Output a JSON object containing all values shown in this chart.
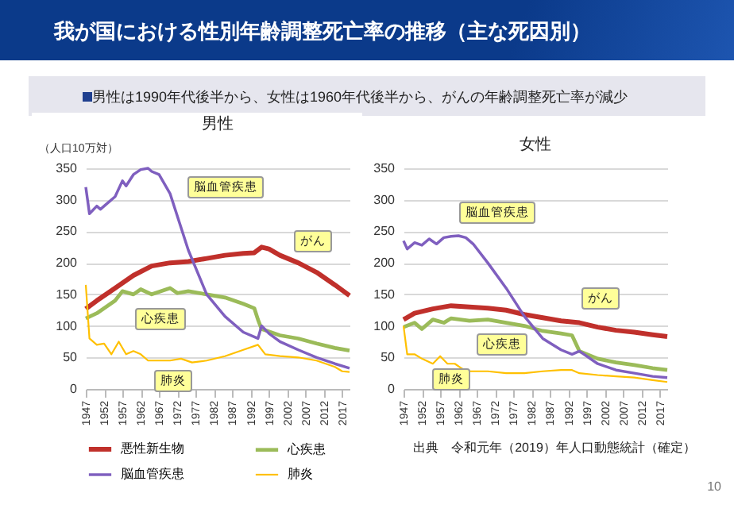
{
  "chart_data": [
    {
      "type": "other",
      "title": "我が国における性別年齢調整死亡率の推移（主な死因別）",
      "subtitle": "男性は1990年代後半から、女性は1960年代後半から、がんの年齢調整死亡率が減少",
      "annotations": [
        "10"
      ]
    },
    {
      "type": "line",
      "title": "男性",
      "ylabel": "（人口10万対）",
      "xlim": [
        1947,
        2019
      ],
      "xticks": [
        1947,
        1952,
        1957,
        1962,
        1967,
        1972,
        1977,
        1982,
        1987,
        1992,
        1997,
        2002,
        2007,
        2012,
        2017
      ],
      "ylim": [
        0,
        350
      ],
      "yticks": [
        0,
        50,
        100,
        150,
        200,
        250,
        300,
        350
      ],
      "grid": "y",
      "legend": "bottom",
      "series": [
        {
          "name": "悪性新生物",
          "color": "#c0302b",
          "x": [
            1947,
            1950,
            1955,
            1960,
            1965,
            1970,
            1975,
            1980,
            1985,
            1990,
            1993,
            1995,
            1997,
            2000,
            2005,
            2010,
            2015,
            2019
          ],
          "values": [
            127,
            140,
            160,
            180,
            195,
            200,
            202,
            207,
            212,
            215,
            216,
            225,
            222,
            212,
            200,
            185,
            165,
            148
          ]
        },
        {
          "name": "心疾患",
          "color": "#9bbb59",
          "x": [
            1947,
            1950,
            1955,
            1957,
            1960,
            1962,
            1965,
            1970,
            1972,
            1975,
            1980,
            1985,
            1990,
            1993,
            1994,
            1995,
            2000,
            2005,
            2010,
            2015,
            2019
          ],
          "values": [
            112,
            120,
            140,
            155,
            150,
            158,
            150,
            160,
            152,
            155,
            150,
            145,
            135,
            128,
            110,
            95,
            85,
            80,
            72,
            65,
            61
          ]
        },
        {
          "name": "脳血管疾患",
          "color": "#7f5fbf",
          "x": [
            1947,
            1948,
            1950,
            1951,
            1953,
            1955,
            1957,
            1958,
            1960,
            1962,
            1964,
            1965,
            1967,
            1970,
            1975,
            1980,
            1985,
            1990,
            1994,
            1995,
            1997,
            2000,
            2005,
            2010,
            2015,
            2019
          ],
          "values": [
            320,
            278,
            290,
            285,
            295,
            305,
            330,
            322,
            340,
            348,
            350,
            345,
            340,
            310,
            220,
            150,
            115,
            90,
            80,
            100,
            88,
            75,
            62,
            50,
            40,
            33
          ]
        },
        {
          "name": "肺炎",
          "color": "#ffc000",
          "x": [
            1947,
            1948,
            1950,
            1952,
            1954,
            1956,
            1958,
            1960,
            1962,
            1964,
            1966,
            1970,
            1973,
            1976,
            1980,
            1985,
            1990,
            1994,
            1996,
            2000,
            2005,
            2010,
            2015,
            2017,
            2019
          ],
          "values": [
            165,
            80,
            70,
            72,
            55,
            75,
            55,
            60,
            55,
            45,
            45,
            45,
            48,
            42,
            45,
            52,
            62,
            70,
            55,
            52,
            50,
            45,
            35,
            28,
            27
          ]
        }
      ],
      "annotations": [
        "脳血管疾患",
        "がん",
        "心疾患",
        "肺炎"
      ]
    },
    {
      "type": "line",
      "title": "女性",
      "xlim": [
        1947,
        2019
      ],
      "xticks": [
        1947,
        1952,
        1957,
        1962,
        1967,
        1972,
        1977,
        1982,
        1987,
        1992,
        1997,
        2002,
        2007,
        2012,
        2017
      ],
      "ylim": [
        0,
        350
      ],
      "yticks": [
        0,
        50,
        100,
        150,
        200,
        250,
        300,
        350
      ],
      "grid": "y",
      "series": [
        {
          "color": "#c0302b",
          "x": [
            1947,
            1950,
            1955,
            1960,
            1965,
            1970,
            1975,
            1980,
            1985,
            1990,
            1995,
            2000,
            2005,
            2010,
            2015,
            2019
          ],
          "values": [
            110,
            120,
            127,
            132,
            130,
            128,
            125,
            118,
            113,
            108,
            105,
            98,
            93,
            90,
            86,
            83
          ]
        },
        {
          "color": "#9bbb59",
          "x": [
            1947,
            1950,
            1952,
            1955,
            1958,
            1960,
            1965,
            1970,
            1975,
            1980,
            1985,
            1990,
            1993,
            1995,
            2000,
            2005,
            2010,
            2015,
            2019
          ],
          "values": [
            98,
            105,
            95,
            110,
            105,
            112,
            108,
            110,
            105,
            100,
            92,
            88,
            85,
            60,
            48,
            42,
            38,
            33,
            30
          ]
        },
        {
          "color": "#7f5fbf",
          "x": [
            1947,
            1948,
            1950,
            1952,
            1954,
            1956,
            1958,
            1960,
            1962,
            1964,
            1966,
            1970,
            1975,
            1980,
            1985,
            1990,
            1993,
            1995,
            2000,
            2005,
            2010,
            2015,
            2019
          ],
          "values": [
            235,
            222,
            232,
            228,
            238,
            230,
            240,
            242,
            243,
            240,
            230,
            200,
            160,
            115,
            80,
            62,
            55,
            60,
            40,
            30,
            25,
            20,
            18
          ]
        },
        {
          "color": "#ffc000",
          "x": [
            1947,
            1948,
            1950,
            1952,
            1955,
            1957,
            1959,
            1961,
            1963,
            1965,
            1970,
            1975,
            1980,
            1985,
            1990,
            1993,
            1995,
            2000,
            2005,
            2010,
            2015,
            2019
          ],
          "values": [
            100,
            55,
            55,
            48,
            40,
            52,
            40,
            40,
            32,
            28,
            28,
            25,
            25,
            28,
            30,
            30,
            25,
            22,
            20,
            18,
            14,
            11
          ]
        }
      ],
      "annotations": [
        "脳血管疾患",
        "がん",
        "心疾患",
        "肺炎",
        "出典　令和元年（2019）年人口動態統計（確定）"
      ]
    }
  ]
}
